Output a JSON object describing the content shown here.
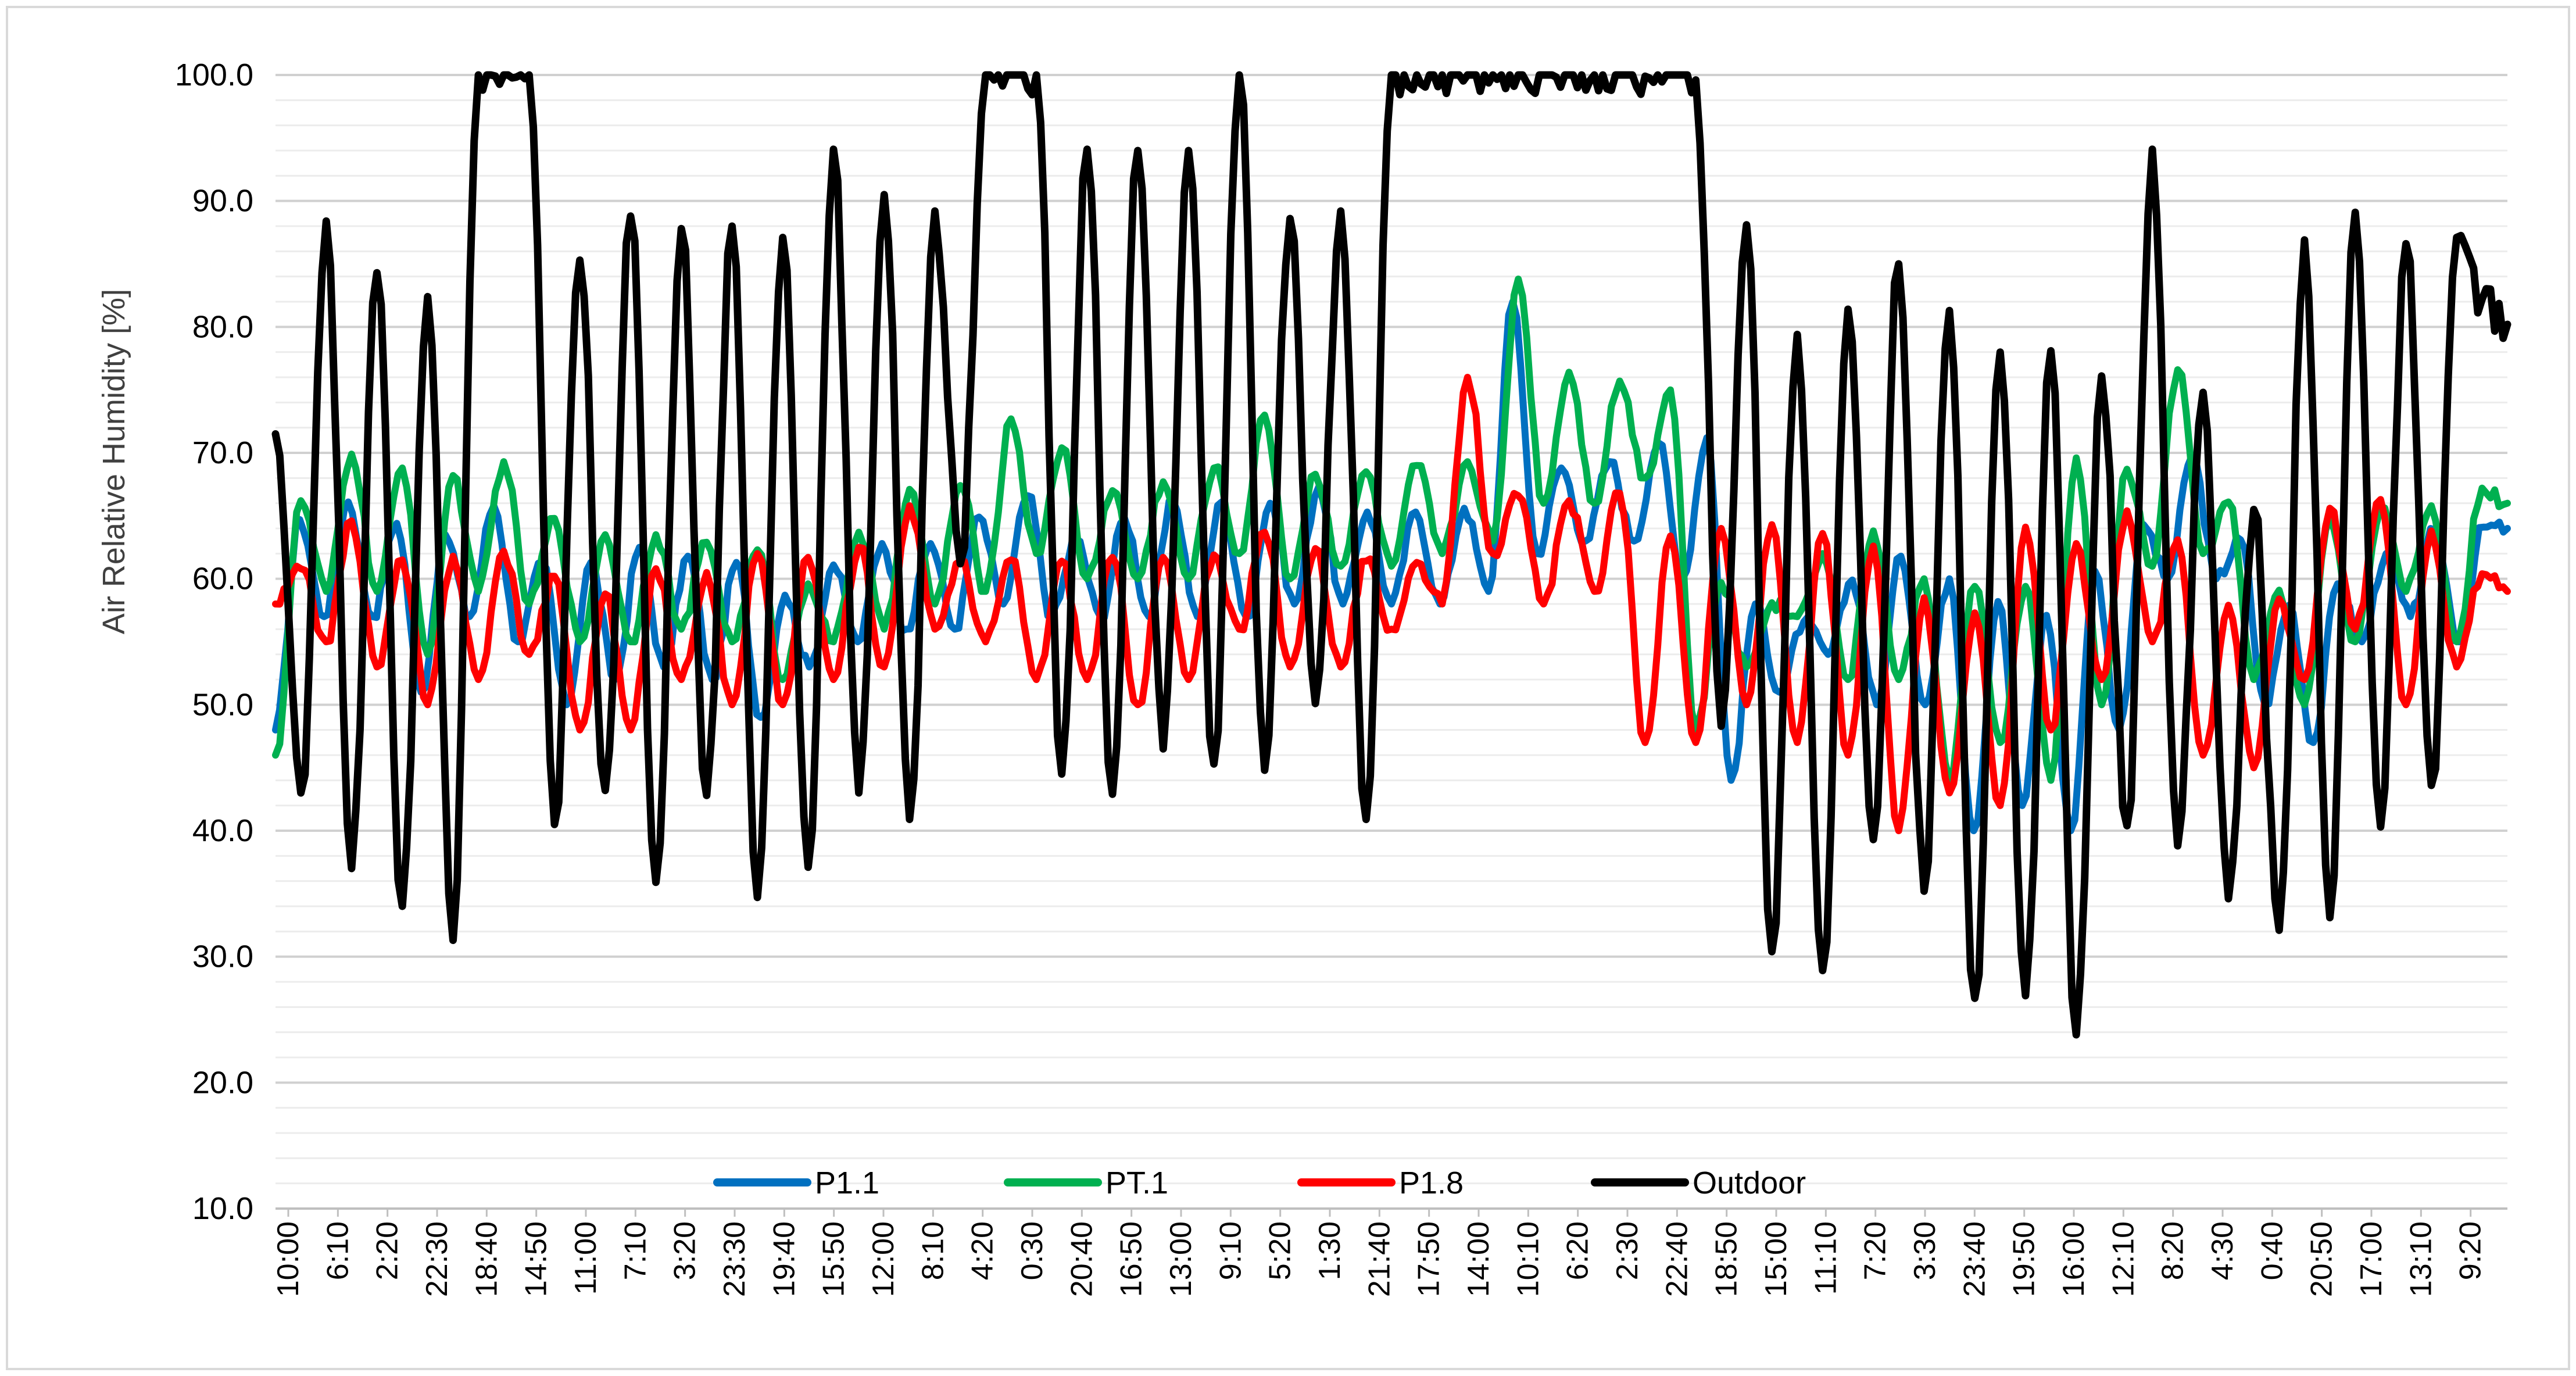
{
  "chart_data": {
    "type": "line",
    "title": "",
    "xlabel": "",
    "ylabel": "Air Relative Humidity [%]",
    "ylim": [
      10,
      100
    ],
    "y_ticks": [
      "10.0",
      "20.0",
      "30.0",
      "40.0",
      "50.0",
      "60.0",
      "70.0",
      "80.0",
      "90.0",
      "100.0"
    ],
    "x_tick_labels": [
      "10:00",
      "6:10",
      "2:20",
      "22:30",
      "18:40",
      "14:50",
      "11:00",
      "7:10",
      "3:20",
      "23:30",
      "19:40",
      "15:50",
      "12:00",
      "8:10",
      "4:20",
      "0:30",
      "20:40",
      "16:50",
      "13:00",
      "9:10",
      "5:20",
      "1:30",
      "21:40",
      "17:50",
      "14:00",
      "10:10",
      "6:20",
      "2:30",
      "22:40",
      "18:50",
      "15:00",
      "11:10",
      "7:20",
      "3:30",
      "23:40",
      "19:50",
      "16:00",
      "12:10",
      "8:20",
      "4:30",
      "0:40",
      "20:50",
      "17:00",
      "13:10",
      "9:20"
    ],
    "grid": true,
    "legend_position": "bottom-inside",
    "series": [
      {
        "name": "P1.1",
        "color": "#0070C0",
        "values": [
          48,
          64.7,
          57,
          66.1,
          57,
          64.4,
          51,
          63.5,
          57,
          65.8,
          55,
          61.2,
          50,
          61.3,
          52,
          62.5,
          53,
          61.8,
          52,
          61.3,
          49,
          58.7,
          53,
          61.1,
          55,
          62.8,
          56,
          62.8,
          56,
          64.9,
          58,
          66.6,
          57,
          63.1,
          57,
          64.8,
          57,
          66.2,
          57,
          66.1,
          57,
          66.0,
          58,
          67.3,
          58,
          65.3,
          58,
          65.3,
          58,
          65.6,
          59,
          82.0,
          62,
          68.8,
          63,
          69.3,
          63,
          70.8,
          60,
          71.2,
          44,
          58.0,
          51,
          56.6,
          54,
          59.9,
          50,
          61.8,
          50,
          60.0,
          40,
          58.2,
          42,
          57.1,
          40,
          60.6,
          48,
          64.3,
          60,
          69.8,
          60,
          63.1,
          50,
          57.9,
          47,
          59.6,
          55,
          62.0,
          57,
          63.9,
          55,
          64.1,
          64
        ]
      },
      {
        "name": "PT.1",
        "color": "#00B050",
        "values": [
          46,
          66.2,
          59,
          69.9,
          59,
          68.8,
          54,
          68.2,
          59,
          69.3,
          58,
          64.8,
          55,
          63.5,
          55,
          63.5,
          56,
          62.9,
          55,
          62.3,
          52,
          59.6,
          55,
          63.7,
          56,
          67.1,
          58,
          67.4,
          59,
          72.7,
          62,
          70.4,
          60,
          67.0,
          60,
          67.7,
          60,
          68.8,
          62,
          73.0,
          60,
          68.3,
          61,
          68.5,
          61,
          69.0,
          62,
          69.3,
          63,
          83.8,
          66,
          76.4,
          66,
          75.7,
          68,
          75.0,
          48,
          59.7,
          53,
          58.1,
          57,
          62.0,
          52,
          63.8,
          52,
          60.0,
          44,
          59.4,
          47,
          59.4,
          44,
          69.6,
          50,
          68.7,
          61,
          76.6,
          62,
          66.1,
          52,
          59.1,
          50,
          64.9,
          55,
          65.6,
          59,
          65.8,
          55,
          67.2,
          66
        ]
      },
      {
        "name": "P1.8",
        "color": "#FF0000",
        "values": [
          58,
          60.8,
          55,
          64.6,
          53,
          61.5,
          50,
          61.8,
          52,
          62.2,
          54,
          60.2,
          48,
          58.8,
          48,
          60.8,
          52,
          60.5,
          50,
          62.0,
          50,
          61.7,
          52,
          62.5,
          53,
          65.8,
          56,
          61.4,
          55,
          61.5,
          52,
          61.4,
          52,
          61.7,
          50,
          61.7,
          52,
          61.9,
          56,
          63.7,
          53,
          62.4,
          53,
          61.4,
          56,
          61.3,
          58,
          76.0,
          62,
          66.6,
          58,
          66.2,
          59,
          66.8,
          47,
          63.4,
          47,
          64.0,
          50,
          64.3,
          47,
          63.6,
          46,
          62.6,
          40,
          58.5,
          43,
          57.3,
          42,
          64.1,
          48,
          62.8,
          52,
          65.4,
          55,
          63.1,
          46,
          57.9,
          45,
          58.4,
          52,
          65.6,
          56,
          66.3,
          50,
          63.8,
          53,
          60.4,
          59
        ]
      },
      {
        "name": "Outdoor",
        "color": "#000000",
        "values": [
          71.5,
          43,
          88.4,
          37,
          84.3,
          34,
          82.4,
          31.3,
          100,
          100,
          100,
          40.5,
          85.3,
          43.2,
          88.8,
          35.9,
          87.8,
          42.8,
          88.0,
          34.7,
          87.1,
          37.1,
          94.1,
          43.0,
          90.5,
          40.9,
          89.2,
          61.2,
          100,
          100,
          100,
          44.5,
          94.1,
          42.9,
          94.0,
          46.5,
          94.0,
          45.3,
          100,
          44.8,
          88.6,
          50.1,
          89.2,
          40.9,
          100,
          100,
          100,
          100,
          100,
          100,
          100,
          100,
          100,
          100,
          99.9,
          100,
          99.6,
          48.3,
          88.1,
          30.4,
          79.4,
          28.9,
          81.4,
          39.3,
          85.0,
          35.2,
          81.3,
          26.7,
          78.0,
          26.9,
          78.1,
          23.8,
          76.1,
          40.4,
          94.1,
          38.8,
          74.8,
          34.6,
          65.5,
          32.1,
          86.9,
          33.1,
          89.1,
          40.3,
          86.6,
          43.6,
          87.1,
          82.2,
          80.2
        ]
      }
    ]
  }
}
